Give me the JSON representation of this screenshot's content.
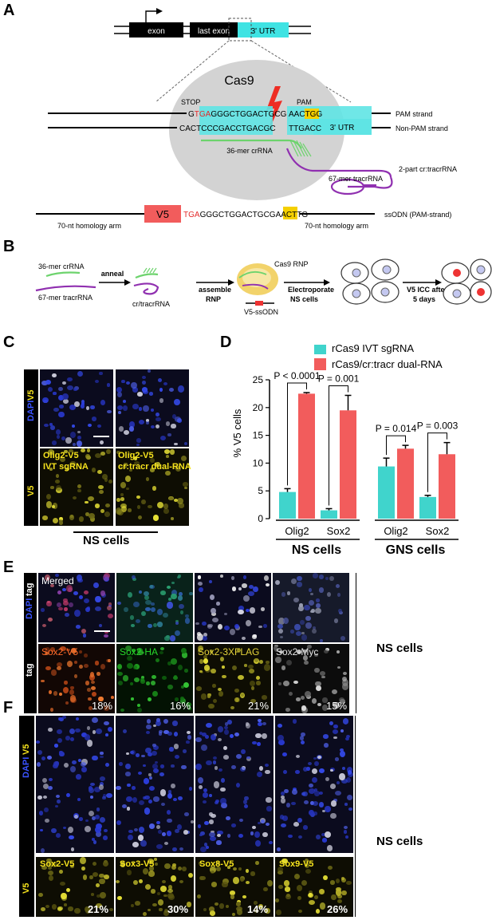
{
  "panels": {
    "a": "A",
    "b": "B",
    "c": "C",
    "d": "D",
    "e": "E",
    "f": "F"
  },
  "panel_a": {
    "exon": "exon",
    "last_exon": "last exon",
    "utr_top": "3' UTR",
    "cas9": "Cas9",
    "stop": "STOP",
    "pam": "PAM",
    "pam_seq_g": "G",
    "pam_seq_tga": "TGA",
    "pam_seq_mid": "GGGCTGGACTGCG",
    "pam_seq_aac": "AAC",
    "pam_seq_tgg": "TGG",
    "nonpam_seq_a": "CACT",
    "nonpam_seq_b": "CCCGACCTGACGC",
    "nonpam_seq_c": "TTGACC",
    "utr_mid": "3' UTR",
    "pam_strand": "PAM strand",
    "nonpam_strand": "Non-PAM strand",
    "crrna": "36-mer crRNA",
    "tracrrna": "67-mer tracrRNA",
    "two_part": "2-part cr:tracrRNA",
    "v5": "V5",
    "odn_tga": "TGA",
    "odn_mid": "GGGCTGGACTGCGAAC",
    "odn_ttg": "TTG",
    "homology_left": "70-nt homology arm",
    "homology_right": "70-nt homology arm",
    "ssodn": "ssODN (PAM-strand)"
  },
  "panel_b": {
    "crrna": "36-mer crRNA",
    "tracrrna": "67-mer tracrRNA",
    "anneal": "anneal",
    "cr_tracr": "cr/tracrRNA",
    "assemble": "assemble",
    "rnp": "RNP",
    "cas9_rnp": "Cas9 RNP",
    "v5_ssodn": "V5-ssODN",
    "electroporate": "Electroporate",
    "ns_cells": "NS cells",
    "v5_icc": "V5 ICC after",
    "days": "5 days"
  },
  "panel_c": {
    "row1_dapi": "DAPI",
    "row1_v5": "V5",
    "row2_v5": "V5",
    "label_left_1": "Olig2-V5",
    "label_left_2": "IVT sgRNA",
    "label_right_1": "Olig2-V5",
    "label_right_2": "cr:tracr dual-RNA",
    "bottom": "NS cells"
  },
  "chart_data": {
    "type": "bar",
    "ylabel": "% V5 cells",
    "ylim": [
      0,
      25
    ],
    "yticks": [
      "0",
      "5",
      "10",
      "15",
      "20",
      "25"
    ],
    "categories": [
      "Olig2",
      "Sox2",
      "Olig2",
      "Sox2"
    ],
    "groups": [
      "NS cells",
      "GNS cells"
    ],
    "colors": {
      "ivt": "#40d4cc",
      "dual": "#f25c5c"
    },
    "series": [
      {
        "name": "rCas9 IVT sgRNA",
        "values": [
          4.8,
          1.5,
          9.4,
          3.9
        ],
        "errors": [
          0.6,
          0.3,
          1.5,
          0.3
        ]
      },
      {
        "name": "rCas9/cr:tracr dual-RNA",
        "values": [
          22.5,
          19.5,
          12.6,
          11.6
        ],
        "errors": [
          0.2,
          2.7,
          0.6,
          2.1
        ]
      }
    ],
    "pvalues": [
      "P < 0.0001",
      "P = 0.001",
      "P = 0.014",
      "P = 0.003"
    ],
    "legend": "top-right"
  },
  "panel_e": {
    "row1_dapi": "DAPI",
    "row1_tag": "tag",
    "row2_tag": "tag",
    "merged": "Merged",
    "labels": [
      "Sox2-V5",
      "Sox2-HA",
      "Sox2-3XFLAG",
      "Sox2-Myc"
    ],
    "label_colors": [
      "#ff6a2a",
      "#27d82a",
      "#e3d23a",
      "#e6e6e6"
    ],
    "percents": [
      "18%",
      "16%",
      "21%",
      "15%"
    ],
    "side": "NS cells"
  },
  "panel_f": {
    "row1_dapi": "DAPI",
    "row1_v5": "V5",
    "row2_v5": "V5",
    "labels": [
      "Sox2-V5",
      "Sox3-V5",
      "Sox8-V5",
      "Sox9-V5"
    ],
    "percents": [
      "21%",
      "30%",
      "14%",
      "26%"
    ],
    "side": "NS cells"
  }
}
